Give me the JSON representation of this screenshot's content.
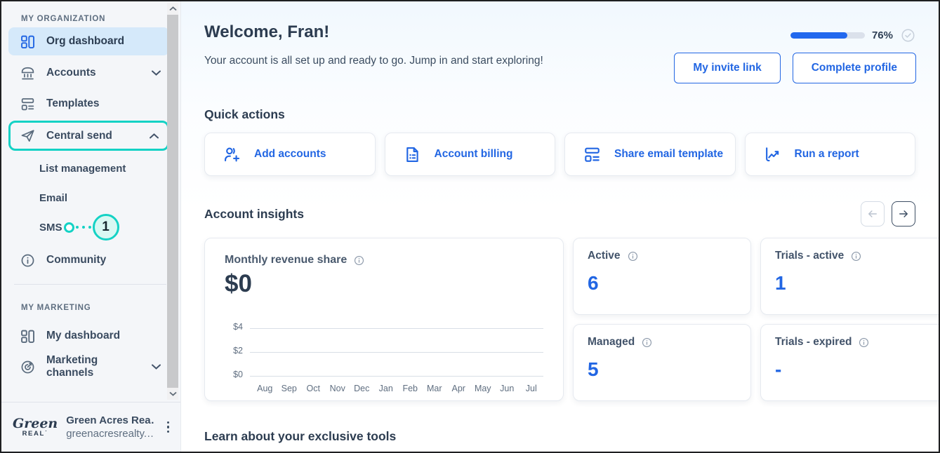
{
  "colors": {
    "accent_blue": "#2266e3",
    "progress_blue": "#2268ee",
    "teal_highlight": "#14d2c5",
    "active_item_bg": "#d5e9fa",
    "sidebar_bg": "#f4f6f9"
  },
  "sidebar": {
    "section_org": "MY ORGANIZATION",
    "org_dashboard": "Org dashboard",
    "accounts": "Accounts",
    "templates": "Templates",
    "central_send": "Central send",
    "list_management": "List management",
    "email": "Email",
    "sms": "SMS",
    "sms_badge": "1",
    "community": "Community",
    "section_marketing": "MY MARKETING",
    "my_dashboard": "My dashboard",
    "marketing_channels": "Marketing channels",
    "footer": {
      "logo_script": "Green",
      "logo_caps": "REAL˙",
      "org_name": "Green Acres Rea…",
      "org_domain": "greenacresrealty.…"
    }
  },
  "header": {
    "title": "Welcome, Fran!",
    "subtitle": "Your account is all set up and ready to go. Jump in and start exploring!",
    "progress_percent": "76%",
    "progress_value": 76,
    "buttons": [
      {
        "label": "My invite link"
      },
      {
        "label": "Complete profile"
      }
    ]
  },
  "quick_actions": {
    "title": "Quick actions",
    "cards": [
      {
        "label": "Add accounts",
        "icon": "add-accounts-icon"
      },
      {
        "label": "Account billing",
        "icon": "billing-document-icon"
      },
      {
        "label": "Share email template",
        "icon": "template-icon"
      },
      {
        "label": "Run a report",
        "icon": "chart-report-icon"
      }
    ]
  },
  "insights": {
    "title": "Account insights",
    "stat_cards": [
      {
        "label": "Active",
        "value": "6"
      },
      {
        "label": "Trials - active",
        "value": "1"
      },
      {
        "label": "Managed",
        "value": "5"
      },
      {
        "label": "Trials - expired",
        "value": "-"
      }
    ]
  },
  "chart_data": {
    "type": "line",
    "title": "Monthly revenue share",
    "big_number": "$0",
    "categories": [
      "Aug",
      "Sep",
      "Oct",
      "Nov",
      "Dec",
      "Jan",
      "Feb",
      "Mar",
      "Apr",
      "May",
      "Jun",
      "Jul"
    ],
    "values": [
      0,
      0,
      0,
      0,
      0,
      0,
      0,
      0,
      0,
      0,
      0,
      0
    ],
    "ytick_labels": [
      "$4",
      "$2",
      "$0"
    ],
    "ylim": [
      0,
      4
    ],
    "grid": true,
    "legend": "none"
  },
  "learn": {
    "title": "Learn about your exclusive tools"
  }
}
